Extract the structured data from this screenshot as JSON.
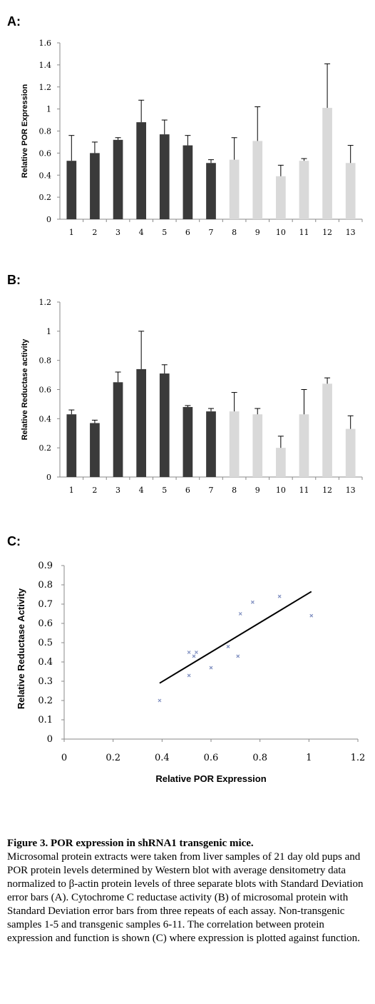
{
  "chart_data": [
    {
      "type": "bar",
      "panel": "A:",
      "ylabel": "Relative POR Expression",
      "xlabel": "",
      "categories": [
        "1",
        "2",
        "3",
        "4",
        "5",
        "6",
        "7",
        "8",
        "9",
        "10",
        "11",
        "12",
        "13"
      ],
      "values": [
        0.53,
        0.6,
        0.72,
        0.88,
        0.77,
        0.67,
        0.51,
        0.54,
        0.71,
        0.39,
        0.53,
        1.01,
        0.51
      ],
      "errors": [
        0.23,
        0.1,
        0.02,
        0.2,
        0.13,
        0.09,
        0.03,
        0.2,
        0.31,
        0.1,
        0.02,
        0.4,
        0.16
      ],
      "yticks": [
        "0",
        "0.2",
        "0.4",
        "0.6",
        "0.8",
        "1",
        "1.2",
        "1.4",
        "1.6"
      ],
      "ylim": [
        0,
        1.6
      ],
      "colors": {
        "dark": "#3a3a3a",
        "light": "#d9d9d9"
      },
      "dark_count": 7
    },
    {
      "type": "bar",
      "panel": "B:",
      "ylabel": "Relative Reductase activity",
      "xlabel": "",
      "categories": [
        "1",
        "2",
        "3",
        "4",
        "5",
        "6",
        "7",
        "8",
        "9",
        "10",
        "11",
        "12",
        "13"
      ],
      "values": [
        0.43,
        0.37,
        0.65,
        0.74,
        0.71,
        0.48,
        0.45,
        0.45,
        0.43,
        0.2,
        0.43,
        0.64,
        0.33
      ],
      "errors": [
        0.03,
        0.02,
        0.07,
        0.26,
        0.06,
        0.01,
        0.02,
        0.13,
        0.04,
        0.08,
        0.17,
        0.04,
        0.09
      ],
      "yticks": [
        "0",
        "0.2",
        "0.4",
        "0.6",
        "0.8",
        "1",
        "1.2"
      ],
      "ylim": [
        0,
        1.2
      ],
      "colors": {
        "dark": "#3a3a3a",
        "light": "#d9d9d9"
      },
      "dark_count": 7
    },
    {
      "type": "scatter",
      "panel": "C:",
      "xlabel": "Relative POR Expression",
      "ylabel": "Relative Reductase Activity",
      "points": [
        {
          "x": 0.39,
          "y": 0.2
        },
        {
          "x": 0.51,
          "y": 0.45
        },
        {
          "x": 0.51,
          "y": 0.33
        },
        {
          "x": 0.53,
          "y": 0.43
        },
        {
          "x": 0.54,
          "y": 0.45
        },
        {
          "x": 0.6,
          "y": 0.37
        },
        {
          "x": 0.67,
          "y": 0.48
        },
        {
          "x": 0.71,
          "y": 0.43
        },
        {
          "x": 0.72,
          "y": 0.65
        },
        {
          "x": 0.77,
          "y": 0.71
        },
        {
          "x": 0.88,
          "y": 0.74
        },
        {
          "x": 1.01,
          "y": 0.64
        }
      ],
      "trendline": {
        "x": [
          0.39,
          1.01
        ],
        "y": [
          0.29,
          0.765
        ]
      },
      "xticks": [
        "0",
        "0.2",
        "0.4",
        "0.6",
        "0.8",
        "1",
        "1.2"
      ],
      "yticks": [
        "0",
        "0.1",
        "0.2",
        "0.3",
        "0.4",
        "0.5",
        "0.6",
        "0.7",
        "0.8",
        "0.9"
      ],
      "xlim": [
        0,
        1.2
      ],
      "ylim": [
        0,
        0.9
      ],
      "colors": {
        "point": "#7f8fc0",
        "line": "#000000"
      }
    }
  ],
  "caption": {
    "label": "Figure 3",
    "title": ". POR expression in shRNA1 transgenic mice.",
    "body": "Microsomal protein extracts were taken from liver samples of 21 day old pups and POR protein levels determined by Western blot with average densitometry data normalized to β-actin protein levels of three separate blots with Standard Deviation error bars (A). Cytochrome C reductase activity (B) of microsomal protein with Standard Deviation error bars from three repeats of each assay. Non-transgenic samples 1-5 and transgenic samples 6-11. The correlation between protein expression and function is shown (C) where expression is plotted against function."
  }
}
